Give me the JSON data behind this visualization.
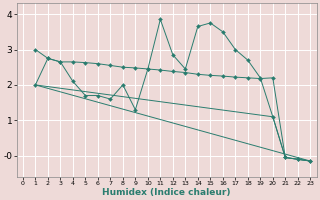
{
  "xlabel": "Humidex (Indice chaleur)",
  "xlim": [
    -0.5,
    23.5
  ],
  "ylim": [
    -0.6,
    4.3
  ],
  "yticks": [
    0,
    1,
    2,
    3,
    4
  ],
  "ytick_labels": [
    "-0",
    "1",
    "2",
    "3",
    "4"
  ],
  "xticks": [
    0,
    1,
    2,
    3,
    4,
    5,
    6,
    7,
    8,
    9,
    10,
    11,
    12,
    13,
    14,
    15,
    16,
    17,
    18,
    19,
    20,
    21,
    22,
    23
  ],
  "bg_color": "#eedad8",
  "grid_color": "#ffffff",
  "line_color": "#2a7d6f",
  "lines": [
    {
      "x": [
        1,
        2,
        3,
        4,
        5,
        6,
        7,
        8,
        9,
        10,
        11,
        12,
        13,
        14,
        15,
        16,
        17,
        18,
        19,
        20,
        21,
        22,
        23
      ],
      "y": [
        3.0,
        2.75,
        2.65,
        2.1,
        1.7,
        1.7,
        1.6,
        2.0,
        1.3,
        2.45,
        3.85,
        2.85,
        2.45,
        3.65,
        3.75,
        3.5,
        3.0,
        2.7,
        2.2,
        1.1,
        -0.05,
        -0.1,
        -0.15
      ],
      "has_markers": true
    },
    {
      "x": [
        1,
        2,
        3,
        4,
        5,
        6,
        7,
        8,
        9,
        10,
        11,
        12,
        13,
        14,
        15,
        16,
        17,
        18,
        19,
        20,
        21,
        22,
        23
      ],
      "y": [
        2.0,
        2.75,
        2.65,
        2.65,
        2.63,
        2.6,
        2.55,
        2.5,
        2.48,
        2.45,
        2.42,
        2.38,
        2.35,
        2.3,
        2.27,
        2.25,
        2.22,
        2.2,
        2.18,
        2.2,
        -0.05,
        -0.1,
        -0.15
      ],
      "has_markers": true
    },
    {
      "x": [
        1,
        23
      ],
      "y": [
        2.0,
        -0.15
      ],
      "has_markers": false
    },
    {
      "x": [
        1,
        20,
        21,
        22,
        23
      ],
      "y": [
        2.0,
        1.1,
        -0.05,
        -0.1,
        -0.15
      ],
      "has_markers": false
    }
  ]
}
